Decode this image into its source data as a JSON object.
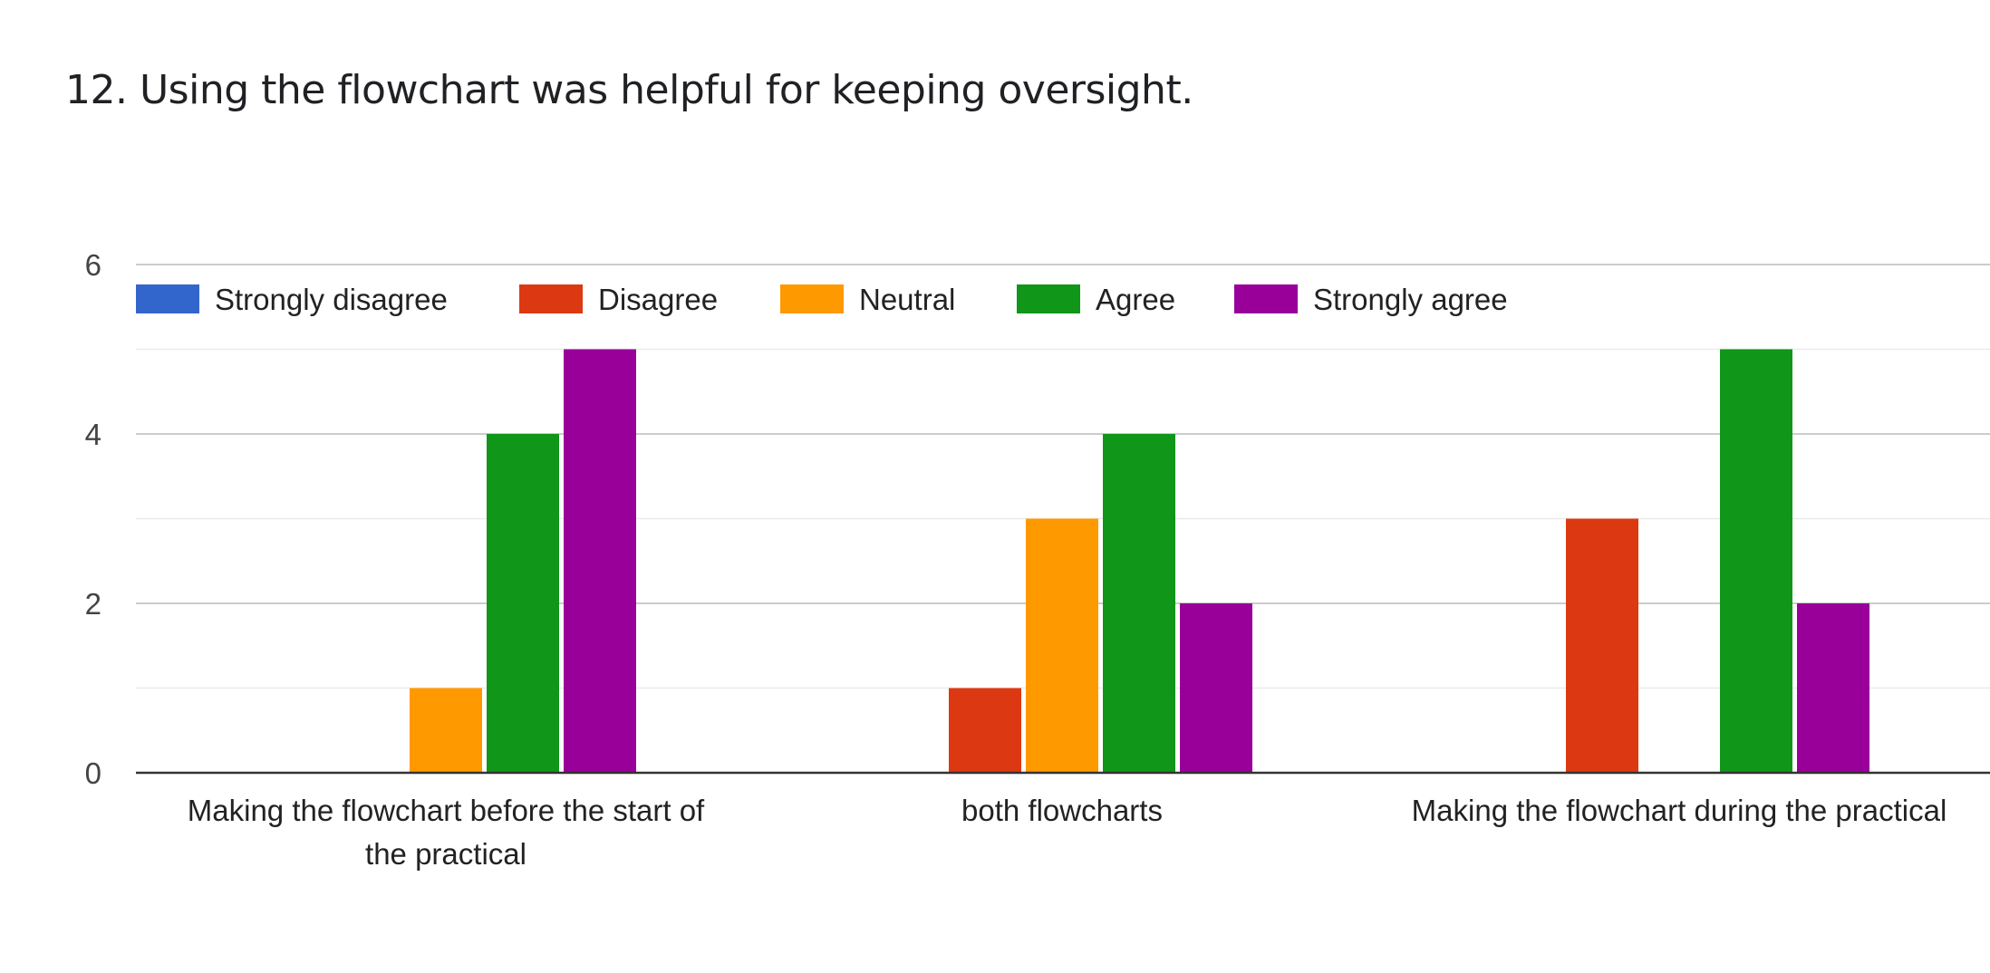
{
  "question": {
    "title": "12. Using the flowchart was helpful for keeping oversight."
  },
  "chart_data": {
    "type": "bar",
    "title": "",
    "xlabel": "",
    "ylabel": "",
    "ylim": [
      0,
      6
    ],
    "yticks": [
      0,
      2,
      4,
      6
    ],
    "grid": true,
    "legend_position": "top-left",
    "categories": [
      [
        "Making the flowchart before the start of",
        "the practical"
      ],
      [
        "both flowcharts"
      ],
      [
        "Making the flowchart during the practical"
      ]
    ],
    "series": [
      {
        "name": "Strongly disagree",
        "color": "#3366cc",
        "values": [
          0,
          0,
          0
        ]
      },
      {
        "name": "Disagree",
        "color": "#dc3912",
        "values": [
          0,
          1,
          3
        ]
      },
      {
        "name": "Neutral",
        "color": "#ff9900",
        "values": [
          1,
          3,
          0
        ]
      },
      {
        "name": "Agree",
        "color": "#109618",
        "values": [
          4,
          4,
          5
        ]
      },
      {
        "name": "Strongly agree",
        "color": "#990099",
        "values": [
          5,
          2,
          2
        ]
      }
    ]
  }
}
